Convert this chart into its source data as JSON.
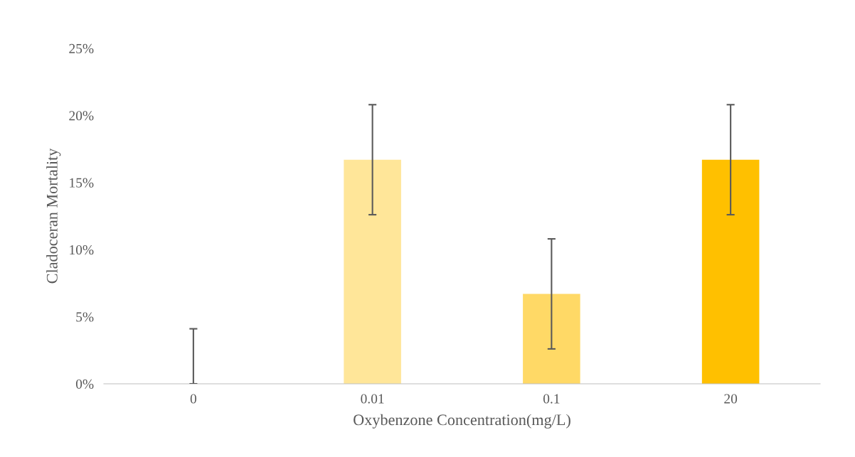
{
  "chart_data": {
    "type": "bar",
    "xlabel": "Oxybenzone Concentration(mg/L)",
    "ylabel": "Cladoceran Mortality",
    "categories": [
      "0",
      "0.01",
      "0.1",
      "20"
    ],
    "values": [
      0,
      16.7,
      6.7,
      16.7
    ],
    "colors": [
      "#fff2cc",
      "#ffe699",
      "#ffd966",
      "#ffc000"
    ],
    "errors": [
      [
        0,
        4.1
      ],
      4.1,
      4.1,
      4.1
    ],
    "ylim": [
      0,
      25
    ],
    "yticks": [
      {
        "value": 0,
        "label": "0%"
      },
      {
        "value": 5,
        "label": "5%"
      },
      {
        "value": 10,
        "label": "10%"
      },
      {
        "value": 15,
        "label": "15%"
      },
      {
        "value": 20,
        "label": "20%"
      },
      {
        "value": 25,
        "label": "25%"
      }
    ],
    "grid": false,
    "legend": false
  }
}
